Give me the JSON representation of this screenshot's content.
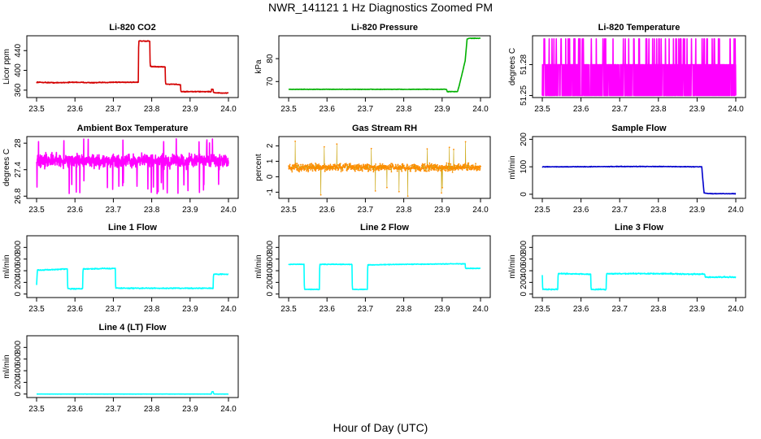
{
  "figure": {
    "title": "NWR_141121  1 Hz Diagnostics Zoomed PM",
    "xlabel": "Hour of Day (UTC)"
  },
  "chart_data": [
    {
      "type": "line",
      "title": "Li-820 CO2",
      "ylabel": "Licor ppm",
      "color": "#d40000",
      "xlim": [
        23.5,
        24.0
      ],
      "ylim": [
        345,
        470
      ],
      "xticks": [
        "23.5",
        "23.6",
        "23.7",
        "23.8",
        "23.9",
        "24.0"
      ],
      "yticks": [
        360,
        400,
        440
      ],
      "x": [
        23.5,
        23.55,
        23.6,
        23.65,
        23.7,
        23.75,
        23.765,
        23.766,
        23.78,
        23.795,
        23.796,
        23.82,
        23.835,
        23.836,
        23.86,
        23.875,
        23.876,
        23.9,
        23.94,
        23.955,
        23.956,
        23.96,
        23.961,
        23.98,
        24.0
      ],
      "y": [
        376,
        375,
        376,
        375,
        376,
        376,
        376,
        460,
        459,
        459,
        408,
        407,
        407,
        372,
        372,
        371,
        357,
        357,
        357,
        357,
        362,
        362,
        355,
        354,
        354
      ],
      "noise": 1.2
    },
    {
      "type": "line",
      "title": "Li-820 Pressure",
      "ylabel": "kPa",
      "color": "#00b000",
      "xlim": [
        23.5,
        24.0
      ],
      "ylim": [
        63,
        90
      ],
      "xticks": [
        "23.5",
        "23.6",
        "23.7",
        "23.8",
        "23.9",
        "24.0"
      ],
      "yticks": [
        70,
        80
      ],
      "x": [
        23.5,
        23.6,
        23.7,
        23.8,
        23.9,
        23.912,
        23.913,
        23.94,
        23.945,
        23.96,
        23.965,
        23.97,
        24.0
      ],
      "y": [
        66.6,
        66.6,
        66.6,
        66.6,
        66.6,
        66.6,
        65.6,
        65.6,
        68.5,
        79.0,
        88.5,
        88.9,
        88.9
      ],
      "noise": 0.15
    },
    {
      "type": "line",
      "title": "Li-820 Temperature",
      "ylabel": "degrees C",
      "color": "#ff00ff",
      "xlim": [
        23.5,
        24.0
      ],
      "ylim": [
        51.248,
        51.308
      ],
      "xticks": [
        "23.5",
        "23.6",
        "23.7",
        "23.8",
        "23.9",
        "24.0"
      ],
      "yticks": [
        51.25,
        51.28
      ],
      "levels": [
        51.25,
        51.28,
        51.305
      ],
      "level_weights": [
        0.45,
        0.47,
        0.08
      ]
    },
    {
      "type": "line",
      "title": "Ambient Box Temperature",
      "ylabel": "degrees C",
      "color": "#ff00ff",
      "xlim": [
        23.5,
        24.0
      ],
      "ylim": [
        26.75,
        28.15
      ],
      "xticks": [
        "23.5",
        "23.6",
        "23.7",
        "23.8",
        "23.9",
        "24.0"
      ],
      "yticks": [
        26.8,
        27.4,
        28.0
      ],
      "mean": 27.6,
      "spread": 0.22,
      "dips": 26.85,
      "peaks": 28.1
    },
    {
      "type": "scatter",
      "title": "Gas Stream RH",
      "ylabel": "percent",
      "color": "#ff8c00",
      "xlim": [
        23.5,
        24.0
      ],
      "ylim": [
        -1.4,
        2.6
      ],
      "xticks": [
        "23.5",
        "23.6",
        "23.7",
        "23.8",
        "23.9",
        "24.0"
      ],
      "yticks": [
        -1,
        0,
        1,
        2
      ],
      "mean": 0.6,
      "spread": 0.35,
      "min": -1.3,
      "max": 2.3
    },
    {
      "type": "line",
      "title": "Sample Flow",
      "ylabel": "ml/min",
      "color": "#0000cc",
      "xlim": [
        23.5,
        24.0
      ],
      "ylim": [
        -15,
        210
      ],
      "xticks": [
        "23.5",
        "23.6",
        "23.7",
        "23.8",
        "23.9",
        "24.0"
      ],
      "yticks": [
        0,
        100,
        200
      ],
      "x": [
        23.5,
        23.6,
        23.7,
        23.8,
        23.9,
        23.912,
        23.918,
        23.93,
        24.0
      ],
      "y": [
        100,
        100,
        101,
        101,
        100,
        100,
        5,
        2,
        2
      ],
      "noise": 1.5
    },
    {
      "type": "line",
      "title": "Line 1 Flow",
      "ylabel": "ml/min",
      "color": "#00ffff",
      "xlim": [
        23.5,
        24.0
      ],
      "ylim": [
        -60,
        1000
      ],
      "xticks": [
        "23.5",
        "23.6",
        "23.7",
        "23.8",
        "23.9",
        "24.0"
      ],
      "yticks": [
        0,
        200,
        400,
        600,
        800
      ],
      "x": [
        23.5,
        23.502,
        23.58,
        23.581,
        23.62,
        23.621,
        23.705,
        23.706,
        23.96,
        23.961,
        24.0
      ],
      "y": [
        150,
        410,
        430,
        90,
        90,
        430,
        440,
        100,
        100,
        340,
        340
      ],
      "noise": 12
    },
    {
      "type": "line",
      "title": "Line 2 Flow",
      "ylabel": "ml/min",
      "color": "#00ffff",
      "xlim": [
        23.5,
        24.0
      ],
      "ylim": [
        -60,
        1000
      ],
      "xticks": [
        "23.5",
        "23.6",
        "23.7",
        "23.8",
        "23.9",
        "24.0"
      ],
      "yticks": [
        0,
        200,
        400,
        600,
        800
      ],
      "x": [
        23.5,
        23.54,
        23.541,
        23.58,
        23.581,
        23.665,
        23.666,
        23.705,
        23.706,
        23.8,
        23.96,
        23.961,
        24.0
      ],
      "y": [
        510,
        510,
        80,
        80,
        510,
        510,
        80,
        80,
        500,
        510,
        520,
        440,
        440
      ],
      "noise": 8
    },
    {
      "type": "line",
      "title": "Line 3 Flow",
      "ylabel": "ml/min",
      "color": "#00ffff",
      "xlim": [
        23.5,
        24.0
      ],
      "ylim": [
        -60,
        1000
      ],
      "xticks": [
        "23.5",
        "23.6",
        "23.7",
        "23.8",
        "23.9",
        "24.0"
      ],
      "yticks": [
        0,
        200,
        400,
        600,
        800
      ],
      "x": [
        23.5,
        23.501,
        23.54,
        23.541,
        23.625,
        23.626,
        23.665,
        23.666,
        23.8,
        23.92,
        23.921,
        24.0
      ],
      "y": [
        330,
        80,
        80,
        350,
        340,
        80,
        80,
        350,
        350,
        340,
        290,
        290
      ],
      "noise": 14
    },
    {
      "type": "line",
      "title": "Line 4 (LT) Flow",
      "ylabel": "ml/min",
      "color": "#00ffff",
      "xlim": [
        23.5,
        24.0
      ],
      "ylim": [
        -60,
        1000
      ],
      "xticks": [
        "23.5",
        "23.6",
        "23.7",
        "23.8",
        "23.9",
        "24.0"
      ],
      "yticks": [
        0,
        200,
        400,
        600,
        800
      ],
      "x": [
        23.5,
        23.6,
        23.7,
        23.8,
        23.9,
        23.955,
        23.957,
        23.96,
        23.962,
        24.0
      ],
      "y": [
        0,
        0,
        0,
        0,
        0,
        0,
        40,
        40,
        0,
        0
      ],
      "noise": 2
    }
  ]
}
